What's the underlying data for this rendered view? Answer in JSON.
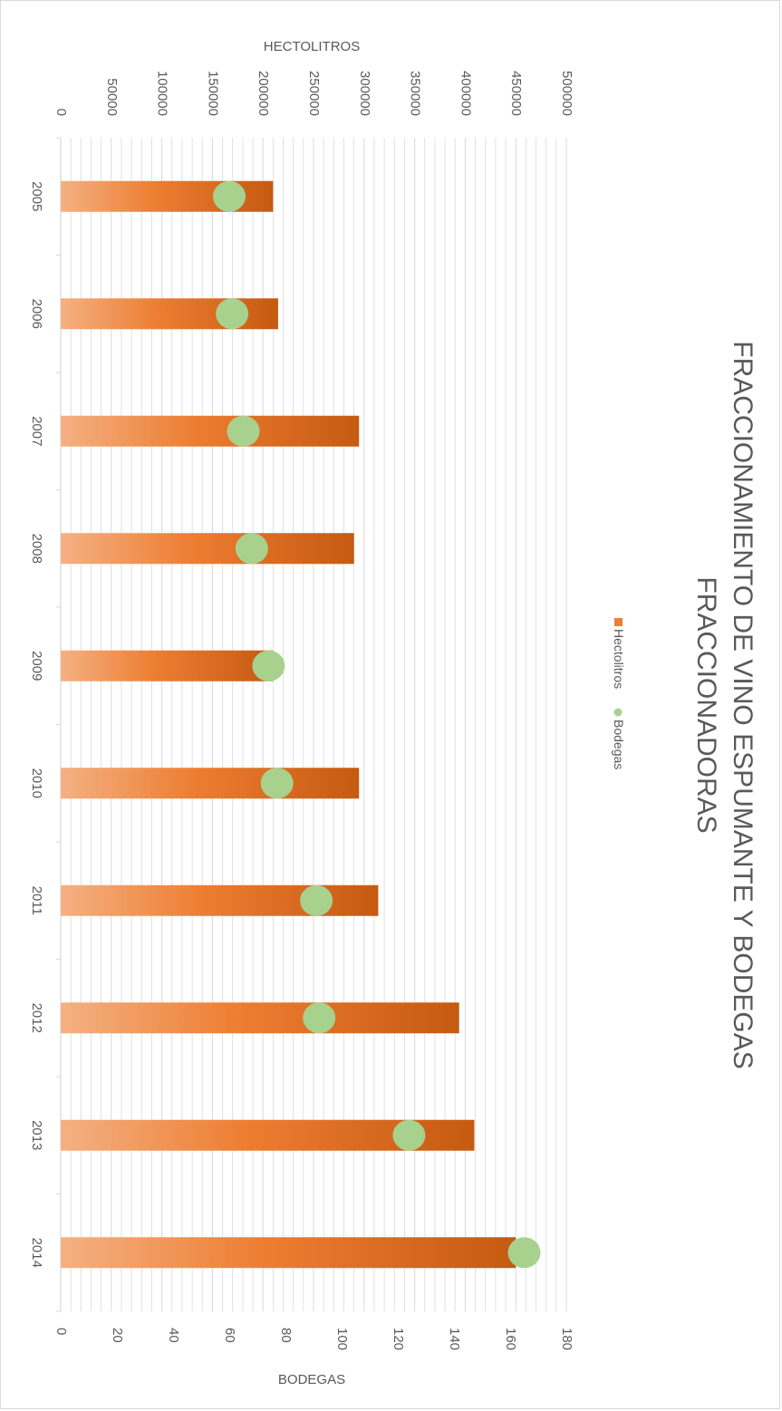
{
  "chart_data": {
    "type": "bar",
    "title_lines": [
      "FRACCIONAMIENTO DE VINO ESPUMANTE Y BODEGAS",
      "FRACCIONADORAS"
    ],
    "categories": [
      "2005",
      "2006",
      "2007",
      "2008",
      "2009",
      "2010",
      "2011",
      "2012",
      "2013",
      "2014"
    ],
    "series": [
      {
        "name": "Hectolitros",
        "kind": "bar",
        "axis": "hectolitros",
        "values": [
          210000,
          215000,
          295000,
          290000,
          210000,
          295000,
          314000,
          394000,
          409000,
          450000
        ]
      },
      {
        "name": "Bodegas",
        "kind": "scatter",
        "axis": "bodegas",
        "values": [
          60,
          61,
          65,
          68,
          74,
          77,
          91,
          92,
          124,
          165
        ]
      }
    ],
    "hectolitros_axis": {
      "label": "HECTOLITROS",
      "range": [
        0,
        500000
      ],
      "ticks": [
        "0",
        "50000",
        "100000",
        "150000",
        "200000",
        "250000",
        "300000",
        "350000",
        "400000",
        "450000",
        "500000"
      ]
    },
    "bodegas_axis": {
      "label": "BODEGAS",
      "range": [
        0,
        180
      ],
      "ticks": [
        "0",
        "20",
        "40",
        "60",
        "80",
        "100",
        "120",
        "140",
        "160",
        "180"
      ]
    },
    "legend": {
      "position": "right",
      "items": [
        "Hectolitros",
        "Bodegas"
      ]
    },
    "colors": {
      "bar_light": "#f4b183",
      "bar_mid": "#ed7d31",
      "bar_dark": "#c55a11",
      "marker": "#a9d18e",
      "grid": "#d9d9d9",
      "text": "#595959"
    },
    "gridlines": true
  }
}
